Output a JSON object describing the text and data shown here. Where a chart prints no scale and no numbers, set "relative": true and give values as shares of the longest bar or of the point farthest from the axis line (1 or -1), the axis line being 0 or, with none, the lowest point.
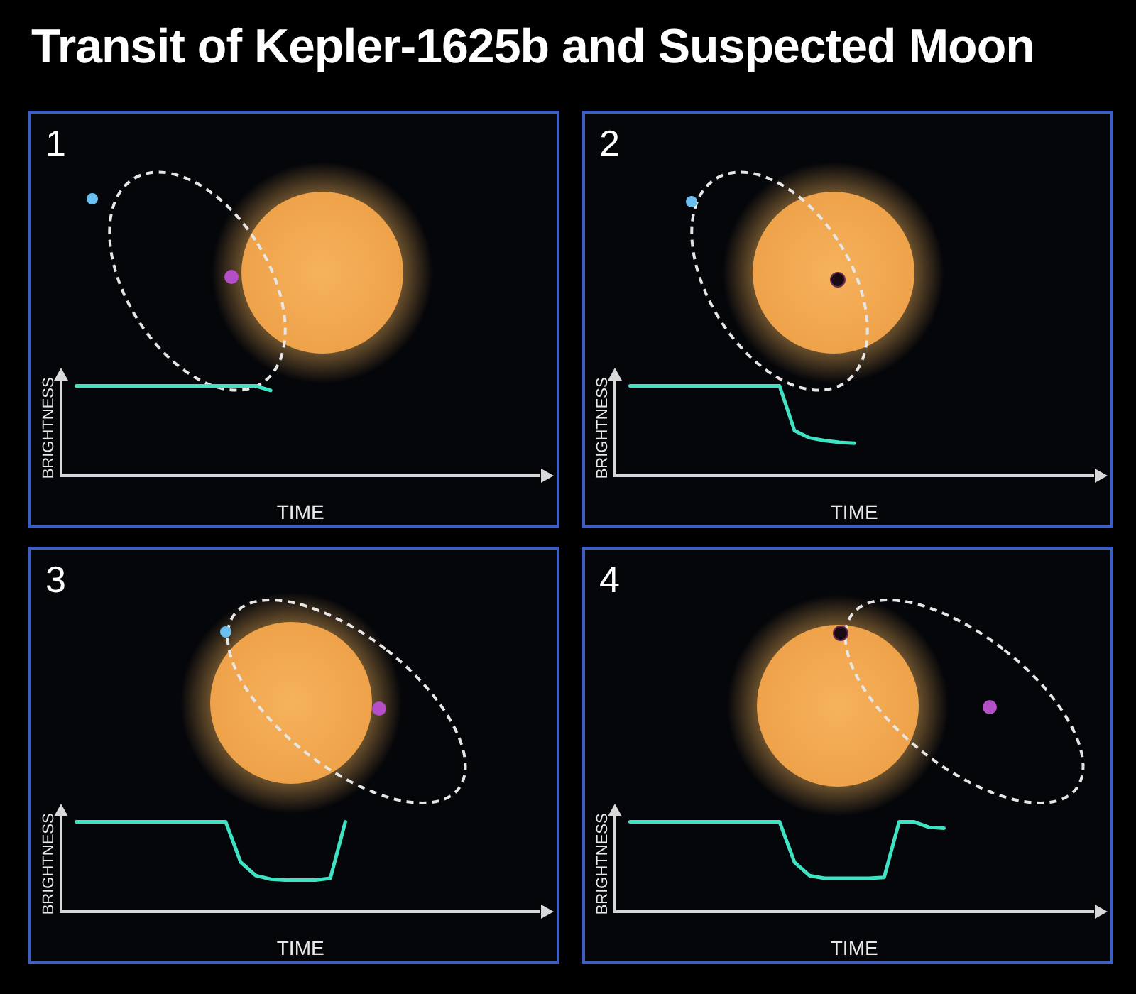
{
  "chart_data": [
    {
      "type": "line",
      "title": "Transit of Kepler-1625b and Suspected Moon",
      "annotations": [
        "1"
      ],
      "relative": true,
      "xlabel": "TIME",
      "ylabel": "BRIGHTNESS",
      "marker": "none",
      "categories": [
        null,
        null,
        null,
        null,
        null,
        null,
        null,
        null,
        null,
        null,
        null,
        null,
        null,
        null,
        null,
        null,
        null,
        null,
        null,
        null,
        null,
        null,
        null,
        null,
        null,
        null,
        null,
        null,
        null,
        null,
        null,
        null,
        null
      ],
      "series": [
        {
          "color": "#3fe3c3",
          "values": [
            null,
            1,
            1,
            1,
            1,
            1,
            1,
            1,
            1,
            1,
            1,
            1,
            1,
            1,
            0.95,
            null,
            null,
            null,
            null,
            null,
            null,
            null,
            null,
            null,
            null,
            null,
            null,
            null,
            null,
            null,
            null,
            null,
            null
          ]
        }
      ]
    },
    {
      "type": "line",
      "annotations": [
        "2"
      ],
      "relative": true,
      "xlabel": "TIME",
      "ylabel": "BRIGHTNESS",
      "marker": "none",
      "categories": [
        null,
        null,
        null,
        null,
        null,
        null,
        null,
        null,
        null,
        null,
        null,
        null,
        null,
        null,
        null,
        null,
        null,
        null,
        null,
        null,
        null,
        null,
        null,
        null,
        null,
        null,
        null,
        null,
        null,
        null,
        null,
        null,
        null
      ],
      "series": [
        {
          "color": "#3fe3c3",
          "values": [
            null,
            1,
            1,
            1,
            1,
            1,
            1,
            1,
            1,
            1,
            1,
            1,
            0.5,
            0.42,
            0.39,
            0.37,
            0.36,
            null,
            null,
            null,
            null,
            null,
            null,
            null,
            null,
            null,
            null,
            null,
            null,
            null,
            null,
            null,
            null
          ]
        }
      ]
    },
    {
      "type": "line",
      "annotations": [
        "3"
      ],
      "relative": true,
      "xlabel": "TIME",
      "ylabel": "BRIGHTNESS",
      "marker": "none",
      "categories": [
        null,
        null,
        null,
        null,
        null,
        null,
        null,
        null,
        null,
        null,
        null,
        null,
        null,
        null,
        null,
        null,
        null,
        null,
        null,
        null,
        null,
        null,
        null,
        null,
        null,
        null,
        null,
        null,
        null,
        null,
        null,
        null,
        null
      ],
      "series": [
        {
          "color": "#3fe3c3",
          "values": [
            null,
            1,
            1,
            1,
            1,
            1,
            1,
            1,
            1,
            1,
            1,
            1,
            0.55,
            0.4,
            0.36,
            0.35,
            0.35,
            0.35,
            0.37,
            1,
            null,
            null,
            null,
            null,
            null,
            null,
            null,
            null,
            null,
            null,
            null,
            null,
            null
          ]
        }
      ]
    },
    {
      "type": "line",
      "annotations": [
        "4"
      ],
      "relative": true,
      "xlabel": "TIME",
      "ylabel": "BRIGHTNESS",
      "marker": "none",
      "categories": [
        null,
        null,
        null,
        null,
        null,
        null,
        null,
        null,
        null,
        null,
        null,
        null,
        null,
        null,
        null,
        null,
        null,
        null,
        null,
        null,
        null,
        null,
        null,
        null,
        null,
        null,
        null,
        null,
        null,
        null,
        null,
        null,
        null
      ],
      "series": [
        {
          "color": "#3fe3c3",
          "values": [
            null,
            1,
            1,
            1,
            1,
            1,
            1,
            1,
            1,
            1,
            1,
            1,
            0.55,
            0.4,
            0.37,
            0.37,
            0.37,
            0.37,
            0.38,
            1,
            1,
            0.94,
            0.93,
            null,
            null,
            null,
            null,
            null,
            null,
            null,
            null,
            null,
            null
          ]
        }
      ]
    }
  ]
}
